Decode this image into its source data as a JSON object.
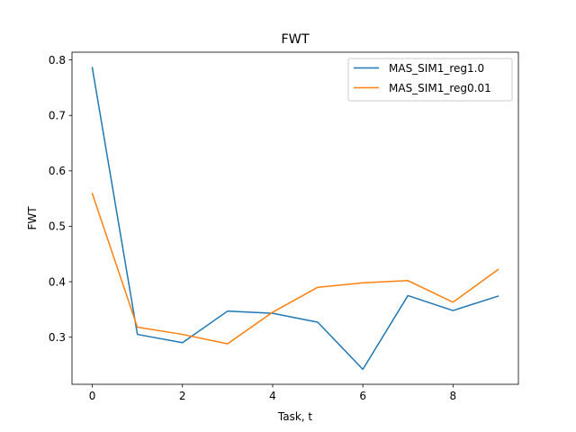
{
  "chart_data": {
    "type": "line",
    "title": "FWT",
    "xlabel": "Task, t",
    "ylabel": "FWT",
    "xlim": [
      -0.45,
      9.45
    ],
    "ylim": [
      0.215,
      0.814
    ],
    "xticks": [
      0,
      2,
      4,
      6,
      8
    ],
    "yticks": [
      0.3,
      0.4,
      0.5,
      0.6,
      0.7,
      0.8
    ],
    "x": [
      0,
      1,
      2,
      3,
      4,
      5,
      6,
      7,
      8,
      9
    ],
    "grid": false,
    "legend_position": "upper right",
    "series": [
      {
        "name": "MAS_SIM1_reg1.0",
        "color": "#1f77b4",
        "values": [
          0.786,
          0.305,
          0.29,
          0.347,
          0.343,
          0.327,
          0.242,
          0.375,
          0.348,
          0.374
        ]
      },
      {
        "name": "MAS_SIM1_reg0.01",
        "color": "#ff7f0e",
        "values": [
          0.559,
          0.318,
          0.305,
          0.288,
          0.345,
          0.39,
          0.398,
          0.402,
          0.363,
          0.422
        ]
      }
    ]
  }
}
